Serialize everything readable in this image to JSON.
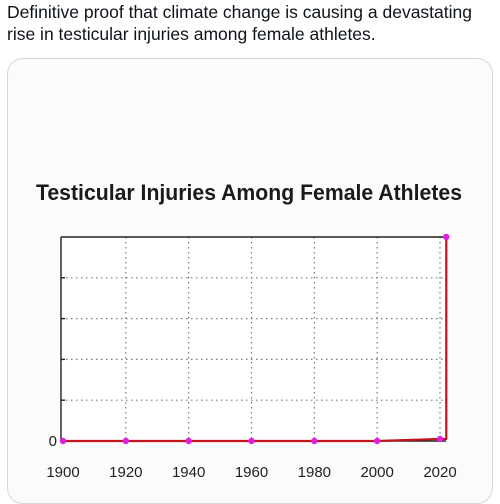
{
  "post": {
    "text": "Definitive proof that climate change is causing a devastating rise in testicular injuries among female athletes."
  },
  "colors": {
    "line": "#c0141e",
    "marker": "#e020e0",
    "axis": "#222222",
    "grid": "#7a7a7a"
  },
  "chart_data": {
    "type": "line",
    "title": "Testicular Injuries Among Female Athletes",
    "xlabel": "",
    "ylabel": "",
    "xlim": [
      1900,
      2022
    ],
    "ylim": [
      0,
      100
    ],
    "grid": true,
    "x_ticks": [
      "1900",
      "1920",
      "1940",
      "1960",
      "1980",
      "2000",
      "2020"
    ],
    "y_ticks": [
      "0"
    ],
    "series": [
      {
        "x": [
          1900,
          1920,
          1940,
          1960,
          1980,
          2000,
          2020,
          2022,
          2022
        ],
        "y": [
          0,
          0,
          0,
          0,
          0,
          0,
          1,
          1,
          100
        ]
      }
    ]
  }
}
